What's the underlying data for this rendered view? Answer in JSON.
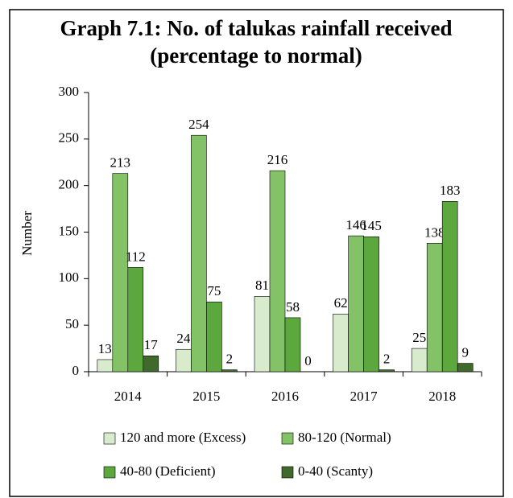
{
  "chart_data": {
    "type": "bar",
    "title": "Graph 7.1: No. of talukas rainfall received",
    "subtitle": "(percentage to normal)",
    "y_label": "Number",
    "categories": [
      "2014",
      "2015",
      "2016",
      "2017",
      "2018"
    ],
    "series": [
      {
        "name": "120 and more (Excess)",
        "color": "#d8ebcd",
        "values": [
          13,
          24,
          81,
          62,
          25
        ]
      },
      {
        "name": "80-120 (Normal)",
        "color": "#84c267",
        "values": [
          213,
          254,
          216,
          146,
          138
        ]
      },
      {
        "name": "40-80 (Deficient)",
        "color": "#5ca83f",
        "values": [
          112,
          75,
          58,
          145,
          183
        ]
      },
      {
        "name": "0-40 (Scanty)",
        "color": "#3f6a2c",
        "values": [
          17,
          2,
          0,
          2,
          9
        ]
      }
    ],
    "ylim": [
      0,
      300
    ],
    "yticks": [
      0,
      50,
      100,
      150,
      200,
      250,
      300
    ],
    "grid": false,
    "legend": "bottom"
  }
}
